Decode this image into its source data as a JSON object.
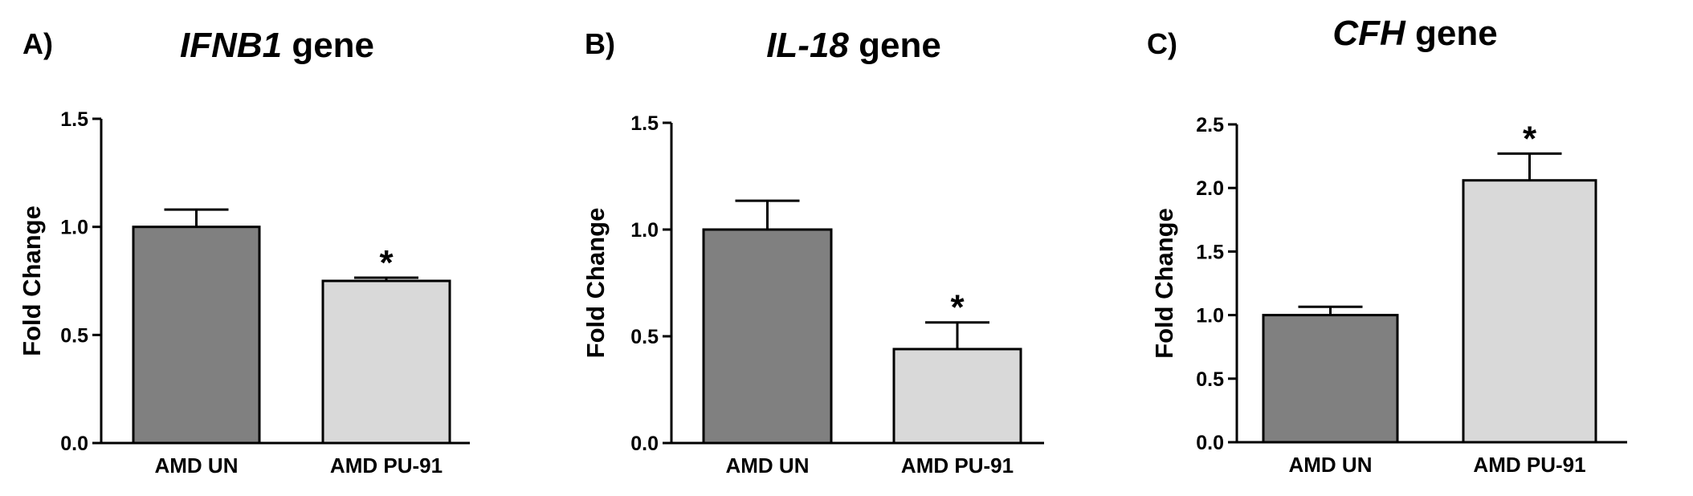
{
  "chart_data": [
    {
      "type": "bar",
      "panel": "A)",
      "title_gene": "IFNB1",
      "title_suffix": " gene",
      "ylabel": "Fold Change",
      "ylim": [
        0,
        1.5
      ],
      "yticks": [
        "0.0",
        "0.5",
        "1.0",
        "1.5"
      ],
      "categories": [
        "AMD UN",
        "AMD PU-91"
      ],
      "values": [
        1.0,
        0.75
      ],
      "errors": [
        0.08,
        0.015
      ],
      "significance": [
        "",
        "*"
      ],
      "colors": [
        "#808080",
        "#d9d9d9"
      ]
    },
    {
      "type": "bar",
      "panel": "B)",
      "title_gene": "IL-18",
      "title_suffix": " gene",
      "ylabel": "Fold Change",
      "ylim": [
        0,
        1.5
      ],
      "yticks": [
        "0.0",
        "0.5",
        "1.0",
        "1.5"
      ],
      "categories": [
        "AMD UN",
        "AMD PU-91"
      ],
      "values": [
        1.0,
        0.44
      ],
      "errors": [
        0.135,
        0.125
      ],
      "significance": [
        "",
        "*"
      ],
      "colors": [
        "#808080",
        "#d9d9d9"
      ]
    },
    {
      "type": "bar",
      "panel": "C)",
      "title_gene": "CFH",
      "title_suffix": " gene",
      "ylabel": "Fold Change",
      "ylim": [
        0,
        2.5
      ],
      "yticks": [
        "0.0",
        "0.5",
        "1.0",
        "1.5",
        "2.0",
        "2.5"
      ],
      "categories": [
        "AMD UN",
        "AMD PU-91"
      ],
      "values": [
        1.0,
        2.06
      ],
      "errors": [
        0.065,
        0.21
      ],
      "significance": [
        "",
        "*"
      ],
      "colors": [
        "#808080",
        "#d9d9d9"
      ]
    }
  ]
}
